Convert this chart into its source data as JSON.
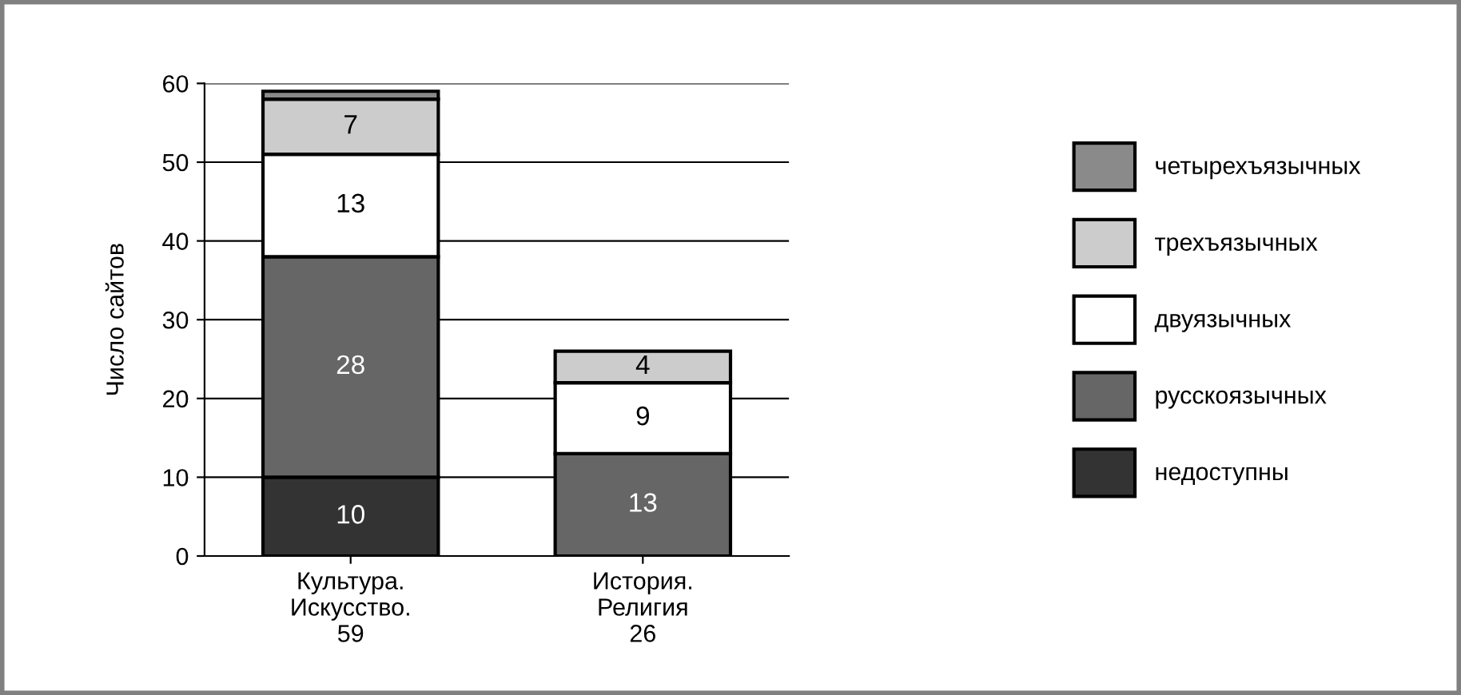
{
  "chart_data": {
    "type": "bar",
    "stacked": true,
    "ylabel": "Число сайтов",
    "categories": [
      "Культура.\nИскусство.\n59",
      "История.\nРелигия\n26"
    ],
    "series": [
      {
        "name": "недоступны",
        "color": "#333333",
        "values": [
          10,
          0
        ],
        "value_labels": [
          "10",
          null
        ]
      },
      {
        "name": "русскоязычных",
        "color": "#666666",
        "values": [
          28,
          13
        ],
        "value_labels": [
          "28",
          "13"
        ]
      },
      {
        "name": "двуязычных",
        "color": "#ffffff",
        "values": [
          13,
          9
        ],
        "value_labels": [
          "13",
          "9"
        ]
      },
      {
        "name": "трехъязычных",
        "color": "#cccccc",
        "values": [
          7,
          4
        ],
        "value_labels": [
          "7",
          "4"
        ]
      },
      {
        "name": "четырехъязычных",
        "color": "#8a8a8a",
        "values": [
          1,
          0
        ],
        "value_labels": [
          null,
          null
        ]
      }
    ],
    "ylim": [
      0,
      60
    ],
    "yticks": [
      0,
      10,
      20,
      30,
      40,
      50,
      60
    ],
    "grid": "y",
    "legend": "right"
  }
}
